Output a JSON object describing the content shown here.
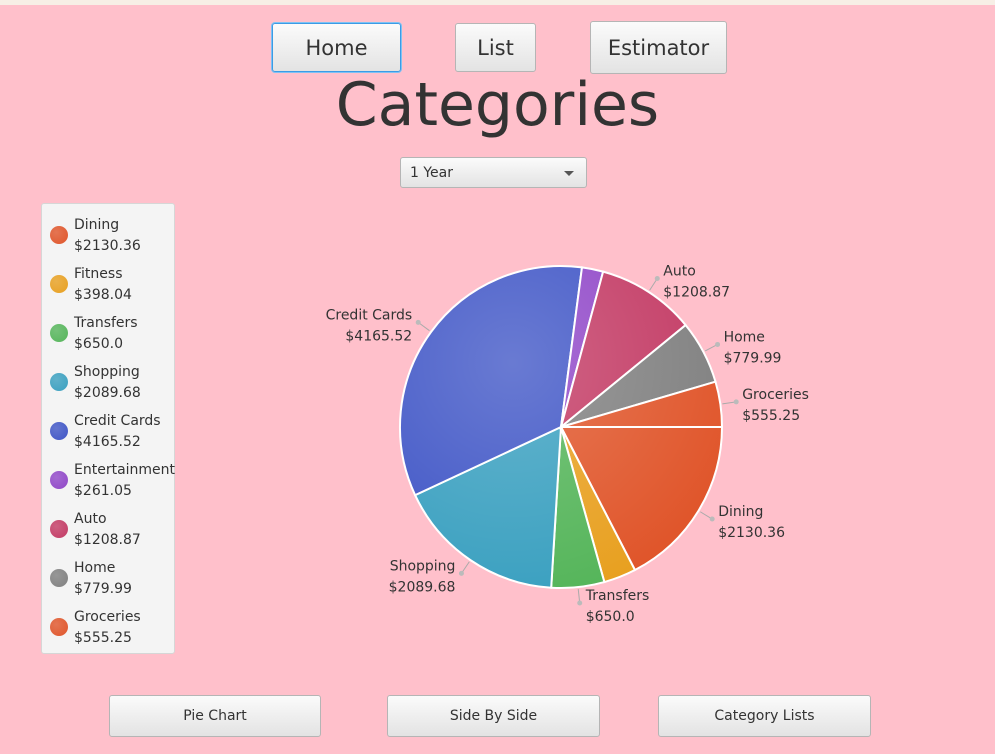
{
  "nav": {
    "home": "Home",
    "list": "List",
    "estimator": "Estimator"
  },
  "page_title": "Categories",
  "period_select": {
    "selected": "1 Year"
  },
  "footer": {
    "pie_chart": "Pie Chart",
    "side_by_side": "Side By Side",
    "category_lists": "Category Lists"
  },
  "colors": {
    "background": "#ffc0cb"
  },
  "chart_data": {
    "type": "pie",
    "categories": [
      "Dining",
      "Fitness",
      "Transfers",
      "Shopping",
      "Credit Cards",
      "Entertainment",
      "Auto",
      "Home",
      "Groceries"
    ],
    "values": [
      2130.36,
      398.04,
      650.0,
      2089.68,
      4165.52,
      261.05,
      1208.87,
      779.99,
      555.25
    ],
    "value_labels": [
      "$2130.36",
      "$398.04",
      "$650.0",
      "$2089.68",
      "$4165.52",
      "$261.05",
      "$1208.87",
      "$779.99",
      "$555.25"
    ],
    "colors": [
      "#e0552a",
      "#e8a020",
      "#55b55a",
      "#3aa0c0",
      "#3f55c6",
      "#9047c8",
      "#c33a64",
      "#808080",
      "#e0552a"
    ],
    "pie_labels_shown": [
      "Dining",
      "Transfers",
      "Shopping",
      "Credit Cards",
      "Auto",
      "Home",
      "Groceries"
    ],
    "legend_placement": "left"
  }
}
